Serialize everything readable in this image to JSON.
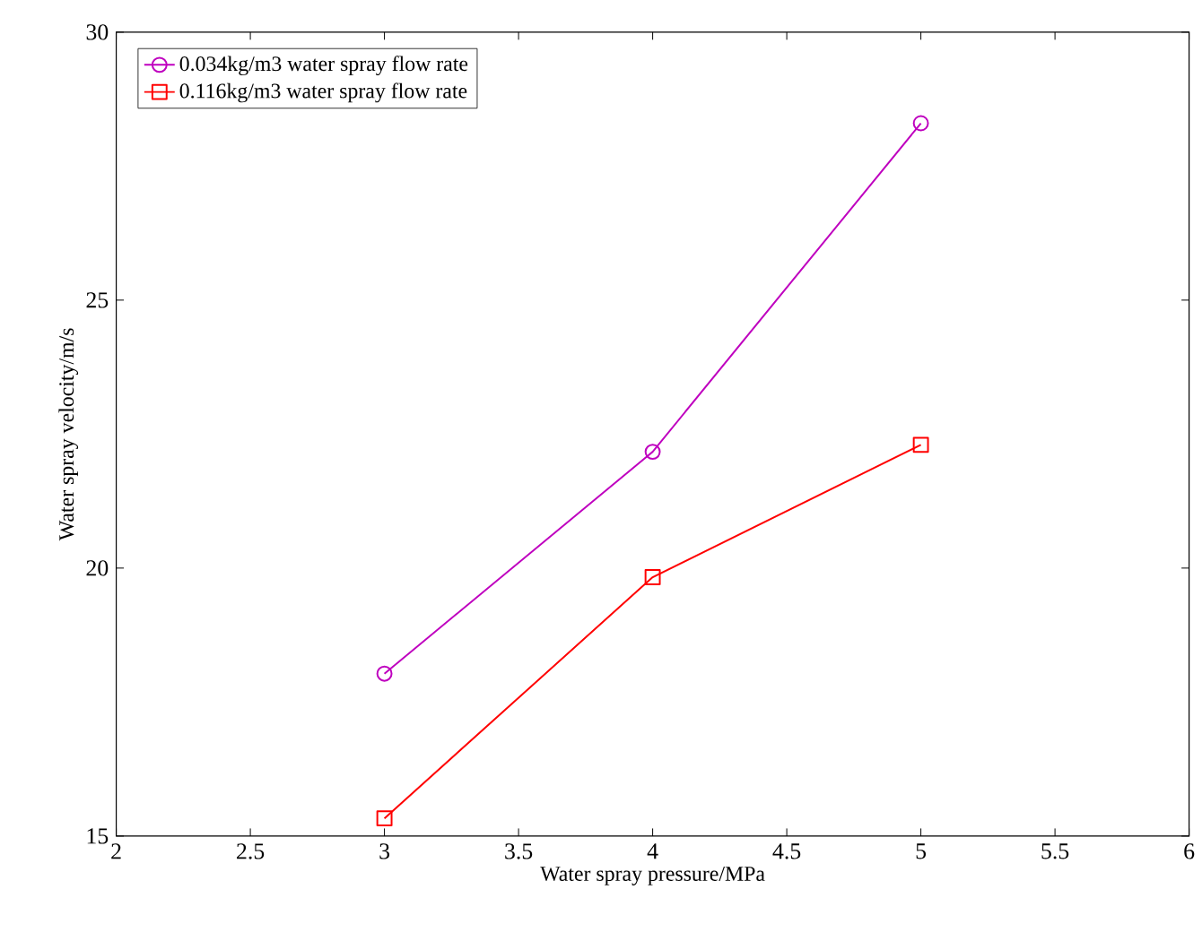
{
  "chart_data": {
    "type": "line",
    "xlabel": "Water spray pressure/MPa",
    "ylabel": "Water spray velocity/m/s",
    "x": [
      3,
      4,
      5
    ],
    "series": [
      {
        "name": "0.034kg/m3 water spray flow rate",
        "color": "#bf00bf",
        "values": [
          18.03,
          22.17,
          28.3
        ],
        "marker": "circle"
      },
      {
        "name": "0.116kg/m3 water spray flow rate",
        "color": "#ff0000",
        "values": [
          15.33,
          19.83,
          22.3
        ],
        "marker": "square"
      }
    ],
    "xlim": [
      2,
      6
    ],
    "xticks": [
      2,
      2.5,
      3,
      3.5,
      4,
      4.5,
      5,
      5.5,
      6
    ],
    "ylim": [
      15,
      30
    ],
    "yticks": [
      15,
      20,
      25,
      30
    ],
    "grid": false,
    "legend": "top left",
    "line_style": "solid"
  }
}
